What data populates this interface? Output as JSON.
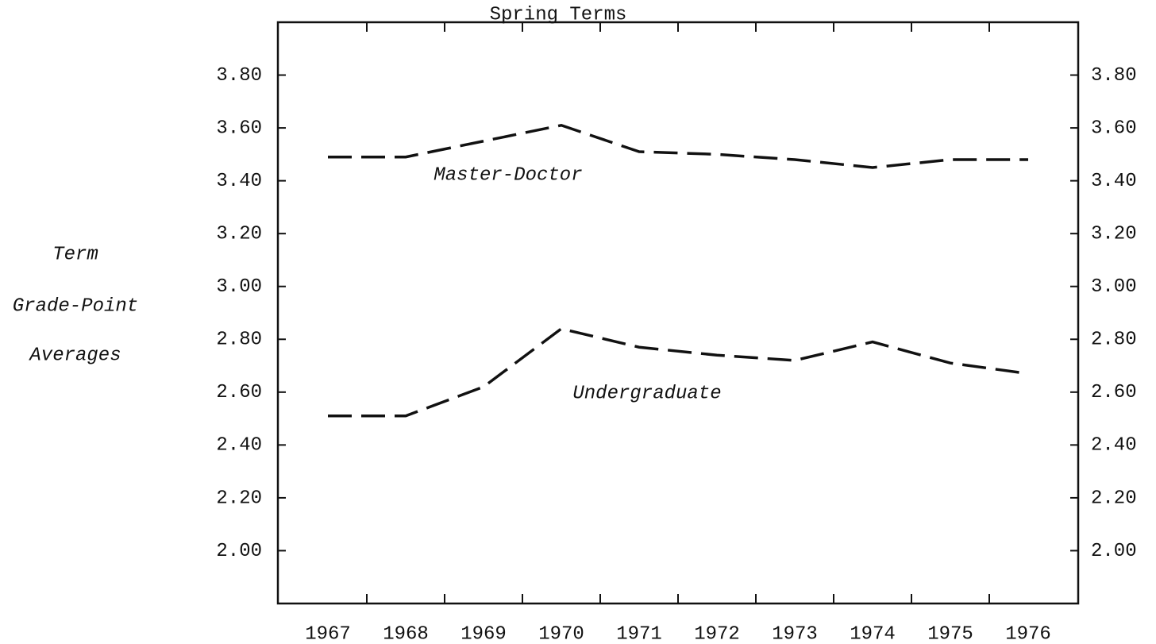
{
  "chart_data": {
    "type": "line",
    "title": "Spring Terms",
    "ylabel": [
      "Term",
      "Grade-Point",
      "Averages"
    ],
    "categories": [
      "1967",
      "1968",
      "1969",
      "1970",
      "1971",
      "1972",
      "1973",
      "1974",
      "1975",
      "1976"
    ],
    "series": [
      {
        "name": "Master-Doctor",
        "color": "#111111",
        "values": [
          3.49,
          3.49,
          3.55,
          3.61,
          3.51,
          3.5,
          3.48,
          3.45,
          3.48,
          3.48
        ]
      },
      {
        "name": "Undergraduate",
        "color": "#111111",
        "values": [
          2.51,
          2.51,
          2.62,
          2.84,
          2.77,
          2.74,
          2.72,
          2.79,
          2.71,
          2.67
        ]
      }
    ],
    "ylim": [
      1.8,
      4.0
    ],
    "yticks": [
      {
        "value": 2,
        "label": "2.00"
      },
      {
        "value": 2.2,
        "label": "2.20"
      },
      {
        "value": 2.4,
        "label": "2.40"
      },
      {
        "value": 2.6,
        "label": "2.60"
      },
      {
        "value": 2.8,
        "label": "2.80"
      },
      {
        "value": 3,
        "label": "3.00"
      },
      {
        "value": 3.2,
        "label": "3.20"
      },
      {
        "value": 3.4,
        "label": "3.40"
      },
      {
        "value": 3.6,
        "label": "3.60"
      },
      {
        "value": 3.8,
        "label": "3.80"
      }
    ],
    "dashed": true,
    "grid": false
  }
}
